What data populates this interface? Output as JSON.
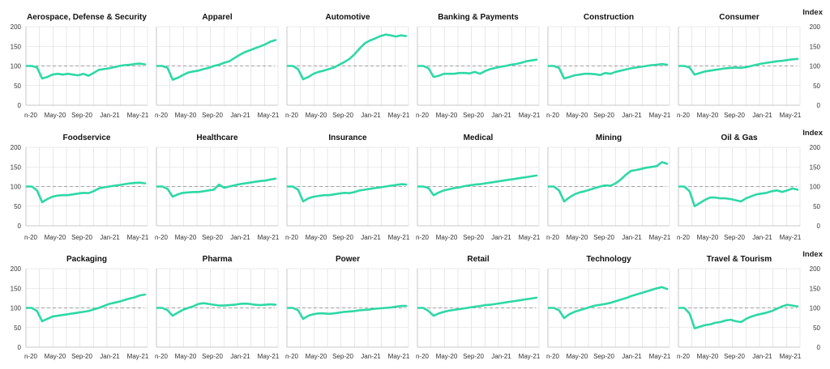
{
  "chart_data": {
    "type": "line",
    "layout": "small-multiples",
    "y_axis_label": "Index",
    "ylim": [
      0,
      200
    ],
    "yticks": [
      "0",
      "50",
      "100",
      "150",
      "200"
    ],
    "x_tick_labels": [
      "n-20",
      "May-20",
      "Sep-20",
      "Jan-21",
      "May-21"
    ],
    "colors": {
      "line": "#2ed8a6",
      "reference": "#a3a3a3",
      "grid": "#d8d8d8"
    },
    "panels": [
      {
        "title": "Aerospace, Defense & Security",
        "reference": 100,
        "values": [
          100,
          100,
          96,
          68,
          72,
          78,
          80,
          78,
          80,
          78,
          76,
          80,
          75,
          82,
          90,
          92,
          94,
          97,
          100,
          102,
          103,
          105,
          106,
          104
        ]
      },
      {
        "title": "Apparel",
        "reference": 100,
        "values": [
          100,
          100,
          95,
          65,
          70,
          77,
          83,
          86,
          88,
          92,
          95,
          100,
          103,
          108,
          112,
          120,
          128,
          135,
          140,
          145,
          150,
          155,
          162,
          166
        ]
      },
      {
        "title": "Automotive",
        "reference": 100,
        "values": [
          100,
          100,
          92,
          66,
          72,
          80,
          85,
          88,
          92,
          96,
          103,
          110,
          118,
          130,
          145,
          158,
          165,
          170,
          176,
          180,
          178,
          175,
          178,
          176
        ]
      },
      {
        "title": "Banking & Payments",
        "reference": 100,
        "values": [
          100,
          100,
          94,
          72,
          75,
          80,
          80,
          80,
          82,
          82,
          81,
          85,
          80,
          87,
          92,
          95,
          98,
          100,
          103,
          105,
          108,
          112,
          114,
          116
        ]
      },
      {
        "title": "Construction",
        "reference": 100,
        "values": [
          100,
          100,
          95,
          68,
          72,
          76,
          78,
          80,
          80,
          79,
          77,
          82,
          80,
          85,
          88,
          91,
          94,
          96,
          98,
          100,
          102,
          103,
          105,
          103
        ]
      },
      {
        "title": "Consumer",
        "reference": 100,
        "values": [
          100,
          100,
          96,
          78,
          82,
          86,
          88,
          90,
          92,
          94,
          95,
          96,
          95,
          97,
          100,
          103,
          106,
          108,
          110,
          112,
          113,
          115,
          117,
          118
        ]
      },
      {
        "title": "Foodservice",
        "reference": 100,
        "values": [
          100,
          100,
          90,
          60,
          68,
          74,
          77,
          78,
          78,
          80,
          82,
          84,
          83,
          88,
          95,
          98,
          100,
          102,
          104,
          106,
          108,
          109,
          110,
          108
        ]
      },
      {
        "title": "Healthcare",
        "reference": 100,
        "values": [
          100,
          100,
          94,
          74,
          80,
          84,
          85,
          86,
          86,
          88,
          90,
          92,
          105,
          97,
          100,
          103,
          106,
          108,
          110,
          112,
          114,
          115,
          118,
          120
        ]
      },
      {
        "title": "Insurance",
        "reference": 100,
        "values": [
          100,
          100,
          92,
          62,
          70,
          74,
          76,
          78,
          78,
          80,
          82,
          84,
          83,
          86,
          90,
          92,
          94,
          96,
          98,
          100,
          102,
          104,
          106,
          105
        ]
      },
      {
        "title": "Medical",
        "reference": 100,
        "values": [
          100,
          100,
          96,
          78,
          85,
          90,
          93,
          96,
          98,
          101,
          103,
          105,
          106,
          108,
          110,
          112,
          114,
          116,
          118,
          120,
          122,
          124,
          126,
          128
        ]
      },
      {
        "title": "Mining",
        "reference": 100,
        "values": [
          100,
          100,
          90,
          62,
          72,
          80,
          85,
          88,
          92,
          96,
          100,
          103,
          102,
          108,
          118,
          130,
          140,
          142,
          145,
          148,
          150,
          152,
          162,
          158
        ]
      },
      {
        "title": "Oil & Gas",
        "reference": 100,
        "values": [
          100,
          100,
          88,
          50,
          58,
          66,
          72,
          72,
          70,
          70,
          68,
          65,
          62,
          70,
          75,
          80,
          82,
          84,
          88,
          90,
          86,
          90,
          95,
          92
        ]
      },
      {
        "title": "Packaging",
        "reference": 100,
        "values": [
          100,
          100,
          92,
          66,
          72,
          78,
          80,
          82,
          84,
          86,
          88,
          90,
          92,
          96,
          100,
          105,
          110,
          113,
          116,
          120,
          124,
          127,
          132,
          134
        ]
      },
      {
        "title": "Pharma",
        "reference": 100,
        "values": [
          100,
          100,
          94,
          80,
          88,
          95,
          100,
          104,
          110,
          112,
          110,
          108,
          106,
          106,
          107,
          108,
          110,
          111,
          110,
          108,
          107,
          108,
          109,
          108
        ]
      },
      {
        "title": "Power",
        "reference": 100,
        "values": [
          100,
          100,
          94,
          72,
          80,
          84,
          86,
          86,
          85,
          86,
          88,
          90,
          91,
          92,
          94,
          95,
          96,
          98,
          99,
          100,
          101,
          103,
          105,
          105
        ]
      },
      {
        "title": "Retail",
        "reference": 100,
        "values": [
          100,
          100,
          92,
          80,
          86,
          90,
          93,
          95,
          97,
          99,
          101,
          103,
          105,
          107,
          108,
          110,
          112,
          114,
          116,
          118,
          120,
          122,
          124,
          126
        ]
      },
      {
        "title": "Technology",
        "reference": 100,
        "values": [
          100,
          100,
          94,
          74,
          84,
          90,
          94,
          98,
          102,
          106,
          108,
          110,
          113,
          117,
          121,
          125,
          130,
          134,
          138,
          142,
          146,
          150,
          153,
          148
        ]
      },
      {
        "title": "Travel & Tourism",
        "reference": 100,
        "values": [
          100,
          100,
          86,
          48,
          52,
          56,
          58,
          62,
          64,
          68,
          70,
          66,
          64,
          72,
          78,
          82,
          85,
          88,
          92,
          98,
          104,
          108,
          106,
          104
        ]
      }
    ]
  }
}
